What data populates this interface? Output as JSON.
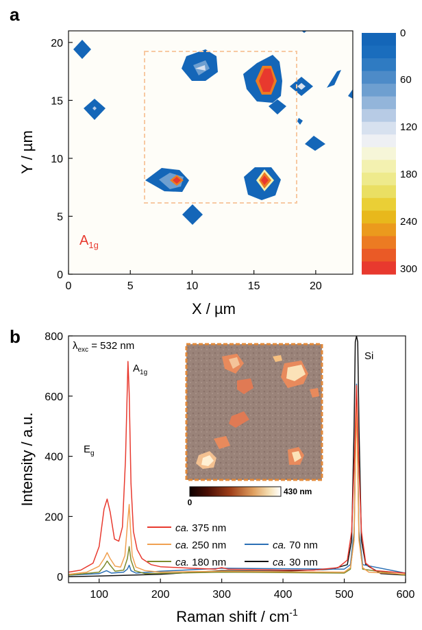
{
  "panel_a": {
    "letter": "a",
    "xlabel": "X / µm",
    "ylabel": "Y / µm",
    "annotation": "A",
    "annotation_sub": "1g",
    "annotation_color": "#e8392e",
    "roi_color": "#f7c9a2",
    "colorbar_ticks": [
      "0",
      "60",
      "120",
      "180",
      "240",
      "300"
    ]
  },
  "panel_b": {
    "letter": "b",
    "xlabel_main": "Raman shift / cm",
    "xlabel_sup": "-1",
    "ylabel": "Intensity / a.u.",
    "lambda_label": "λ",
    "lambda_sub": "exc",
    "lambda_value": " = 532 nm",
    "peak_eg": "E",
    "peak_eg_sub": "g",
    "peak_a1g": "A",
    "peak_a1g_sub": "1g",
    "peak_si": "Si",
    "inset_scale_min": "0",
    "inset_scale_max": "430 nm",
    "inset_frame_color": "#e38a3a",
    "legend": [
      {
        "prefix": "ca.",
        "text": " 375 nm",
        "color": "#e8392e"
      },
      {
        "prefix": "ca.",
        "text": " 250 nm",
        "color": "#f0a050"
      },
      {
        "prefix": "ca.",
        "text": " 70 nm",
        "color": "#2a6fb5"
      },
      {
        "prefix": "ca.",
        "text": " 180 nm",
        "color": "#7e8a2c"
      },
      {
        "prefix": "ca.",
        "text": " 30 nm",
        "color": "#111111"
      }
    ]
  },
  "chart_data": [
    {
      "type": "heatmap",
      "title": "",
      "xlabel": "X / µm",
      "ylabel": "Y / µm",
      "xlim": [
        0,
        23
      ],
      "ylim": [
        0,
        21
      ],
      "xticks": [
        0,
        5,
        10,
        15,
        20
      ],
      "yticks": [
        0,
        5,
        10,
        15,
        20
      ],
      "annotation": "A1g",
      "colorbar": {
        "range": [
          0,
          300
        ],
        "ticks": [
          0,
          60,
          120,
          180,
          240,
          300
        ],
        "levels": [
          "#1466b8",
          "#1a6dbd",
          "#2f7bc2",
          "#4d8bc8",
          "#6e9fd0",
          "#93b5da",
          "#b7cbe5",
          "#d7e1ef",
          "#eef0f4",
          "#f6f6d8",
          "#f3f1b0",
          "#eeea8c",
          "#eadf63",
          "#eacf36",
          "#e8b81c",
          "#eb9a1d",
          "#ec7b22",
          "#ea5a26",
          "#e8392e"
        ]
      },
      "roi_box": {
        "x": [
          6,
          18.5
        ],
        "y": [
          6,
          19
        ]
      },
      "features": [
        {
          "x": 1,
          "y": 19,
          "intensity": 15
        },
        {
          "x": 2,
          "y": 14,
          "intensity": 90
        },
        {
          "x": 10,
          "y": 17,
          "intensity": 110
        },
        {
          "x": 16,
          "y": 16,
          "intensity": 300
        },
        {
          "x": 19,
          "y": 16,
          "intensity": 120
        },
        {
          "x": 17,
          "y": 14,
          "intensity": 10
        },
        {
          "x": 20,
          "y": 11,
          "intensity": 10
        },
        {
          "x": 9,
          "y": 8,
          "intensity": 300
        },
        {
          "x": 16,
          "y": 8,
          "intensity": 300
        },
        {
          "x": 10.5,
          "y": 5,
          "intensity": 10
        },
        {
          "x": 20,
          "y": 21,
          "intensity": 10
        }
      ]
    },
    {
      "type": "line",
      "title": "",
      "xlabel": "Raman shift / cm-1",
      "ylabel": "Intensity / a.u.",
      "xlim": [
        50,
        600
      ],
      "ylim": [
        -20,
        800
      ],
      "xticks": [
        100,
        200,
        300,
        400,
        500,
        600
      ],
      "yticks": [
        0,
        200,
        400,
        600,
        800
      ],
      "series": [
        {
          "name": "ca. 375 nm",
          "color": "#e8392e",
          "x": [
            50,
            70,
            90,
            100,
            108,
            113,
            118,
            125,
            132,
            138,
            143,
            147,
            149,
            152,
            156,
            162,
            170,
            185,
            200,
            250,
            290,
            300,
            310,
            350,
            400,
            450,
            490,
            505,
            512,
            517,
            520,
            523,
            528,
            535,
            550,
            600
          ],
          "y": [
            15,
            22,
            45,
            100,
            225,
            258,
            215,
            125,
            118,
            165,
            390,
            715,
            610,
            310,
            150,
            90,
            60,
            40,
            33,
            28,
            25,
            30,
            25,
            24,
            22,
            22,
            30,
            55,
            150,
            420,
            635,
            420,
            150,
            45,
            20,
            12
          ]
        },
        {
          "name": "ca. 250 nm",
          "color": "#f0a050",
          "x": [
            50,
            80,
            100,
            108,
            113,
            118,
            126,
            135,
            142,
            146,
            149,
            151,
            154,
            160,
            175,
            200,
            300,
            500,
            510,
            516,
            520,
            524,
            530,
            540,
            600
          ],
          "y": [
            8,
            15,
            35,
            60,
            80,
            60,
            35,
            32,
            70,
            170,
            240,
            165,
            70,
            32,
            20,
            15,
            18,
            15,
            30,
            120,
            600,
            120,
            30,
            15,
            8
          ]
        },
        {
          "name": "ca. 70 nm",
          "color": "#2a6fb5",
          "x": [
            50,
            100,
            112,
            120,
            140,
            146,
            149,
            152,
            160,
            200,
            300,
            500,
            510,
            516,
            520,
            524,
            530,
            600
          ],
          "y": [
            5,
            10,
            20,
            12,
            15,
            25,
            38,
            20,
            12,
            18,
            28,
            25,
            40,
            150,
            640,
            150,
            40,
            12
          ]
        },
        {
          "name": "ca. 180 nm",
          "color": "#7e8a2c",
          "x": [
            50,
            100,
            108,
            113,
            118,
            126,
            140,
            146,
            149,
            152,
            158,
            175,
            300,
            500,
            510,
            516,
            520,
            524,
            530,
            600
          ],
          "y": [
            5,
            15,
            35,
            52,
            38,
            18,
            22,
            60,
            100,
            55,
            20,
            10,
            15,
            12,
            25,
            130,
            620,
            130,
            25,
            5
          ]
        },
        {
          "name": "ca. 30 nm",
          "color": "#111111",
          "x": [
            50,
            100,
            150,
            200,
            300,
            400,
            480,
            505,
            512,
            516,
            518,
            520,
            522,
            524,
            528,
            535,
            560,
            600
          ],
          "y": [
            0,
            2,
            5,
            8,
            20,
            18,
            25,
            40,
            120,
            500,
            780,
            800,
            780,
            500,
            120,
            40,
            10,
            5
          ]
        }
      ],
      "annotations": [
        "λexc = 532 nm",
        "Eg",
        "A1g",
        "Si"
      ],
      "legend_placement": "lower-center"
    }
  ]
}
